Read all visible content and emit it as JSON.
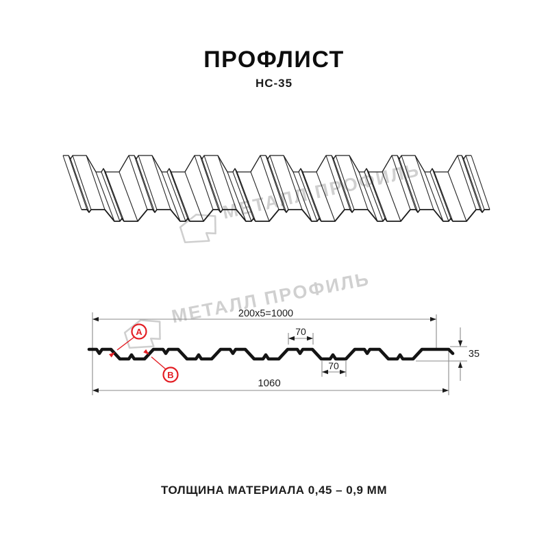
{
  "header": {
    "title": "ПРОФЛИСТ",
    "subtitle": "НС-35"
  },
  "watermark": {
    "brand": "МЕТАЛЛ ПРОФИЛЬ",
    "color": "#d0d0d0"
  },
  "section": {
    "dim_top_pitch": "200x5=1000",
    "dim_rib_top": "70",
    "dim_rib_bottom": "70",
    "dim_height": "35",
    "dim_total_width": "1060",
    "marker_a": "A",
    "marker_b": "B",
    "accent_red": "#e31e24"
  },
  "footer": {
    "thickness_note": "ТОЛЩИНА МАТЕРИАЛА 0,45 – 0,9 ММ"
  }
}
